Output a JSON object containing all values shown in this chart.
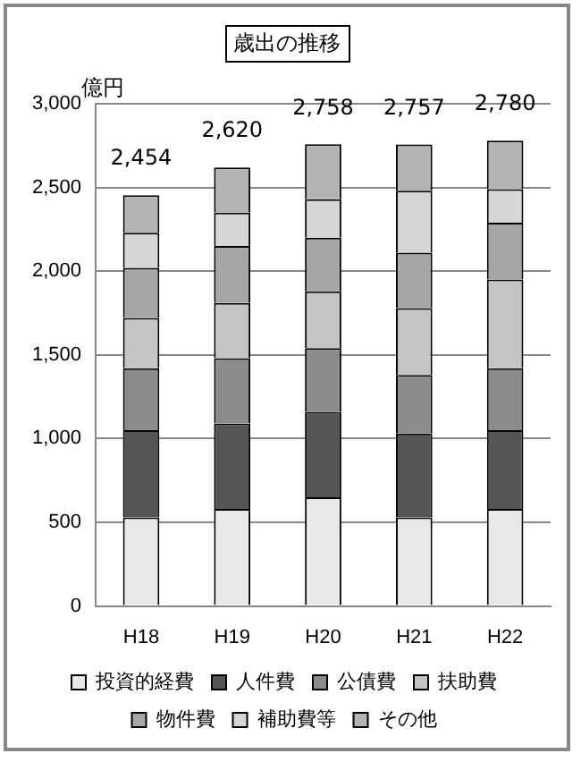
{
  "chart_data": {
    "type": "bar",
    "stacked": true,
    "title": "歳出の推移",
    "ylabel": "億円",
    "categories": [
      "H18",
      "H19",
      "H20",
      "H21",
      "H22"
    ],
    "series": [
      {
        "name": "投資的経費",
        "color": "#e8e8e8",
        "values": [
          530,
          580,
          650,
          530,
          580
        ]
      },
      {
        "name": "人件費",
        "color": "#555555",
        "values": [
          520,
          510,
          510,
          500,
          470
        ]
      },
      {
        "name": "公債費",
        "color": "#8c8c8c",
        "values": [
          370,
          390,
          380,
          350,
          370
        ]
      },
      {
        "name": "扶助費",
        "color": "#c4c4c4",
        "values": [
          300,
          330,
          340,
          400,
          530
        ]
      },
      {
        "name": "物件費",
        "color": "#a6a6a6",
        "values": [
          300,
          340,
          320,
          330,
          340
        ]
      },
      {
        "name": "補助費等",
        "color": "#d6d6d6",
        "values": [
          210,
          200,
          230,
          370,
          200
        ]
      },
      {
        "name": "その他",
        "color": "#b4b4b4",
        "values": [
          224,
          270,
          328,
          277,
          290
        ]
      }
    ],
    "totals": [
      "2,454",
      "2,620",
      "2,758",
      "2,757",
      "2,780"
    ],
    "ylim": [
      0,
      3000
    ],
    "yticks": [
      0,
      500,
      {
        "value": 1000,
        "label": "1,000"
      },
      {
        "value": 1500,
        "label": "1,500"
      },
      {
        "value": 2000,
        "label": "2,000"
      },
      {
        "value": 2500,
        "label": "2,500"
      },
      {
        "value": 3000,
        "label": "3,000"
      }
    ],
    "grid": "y",
    "legend": "bottom"
  }
}
